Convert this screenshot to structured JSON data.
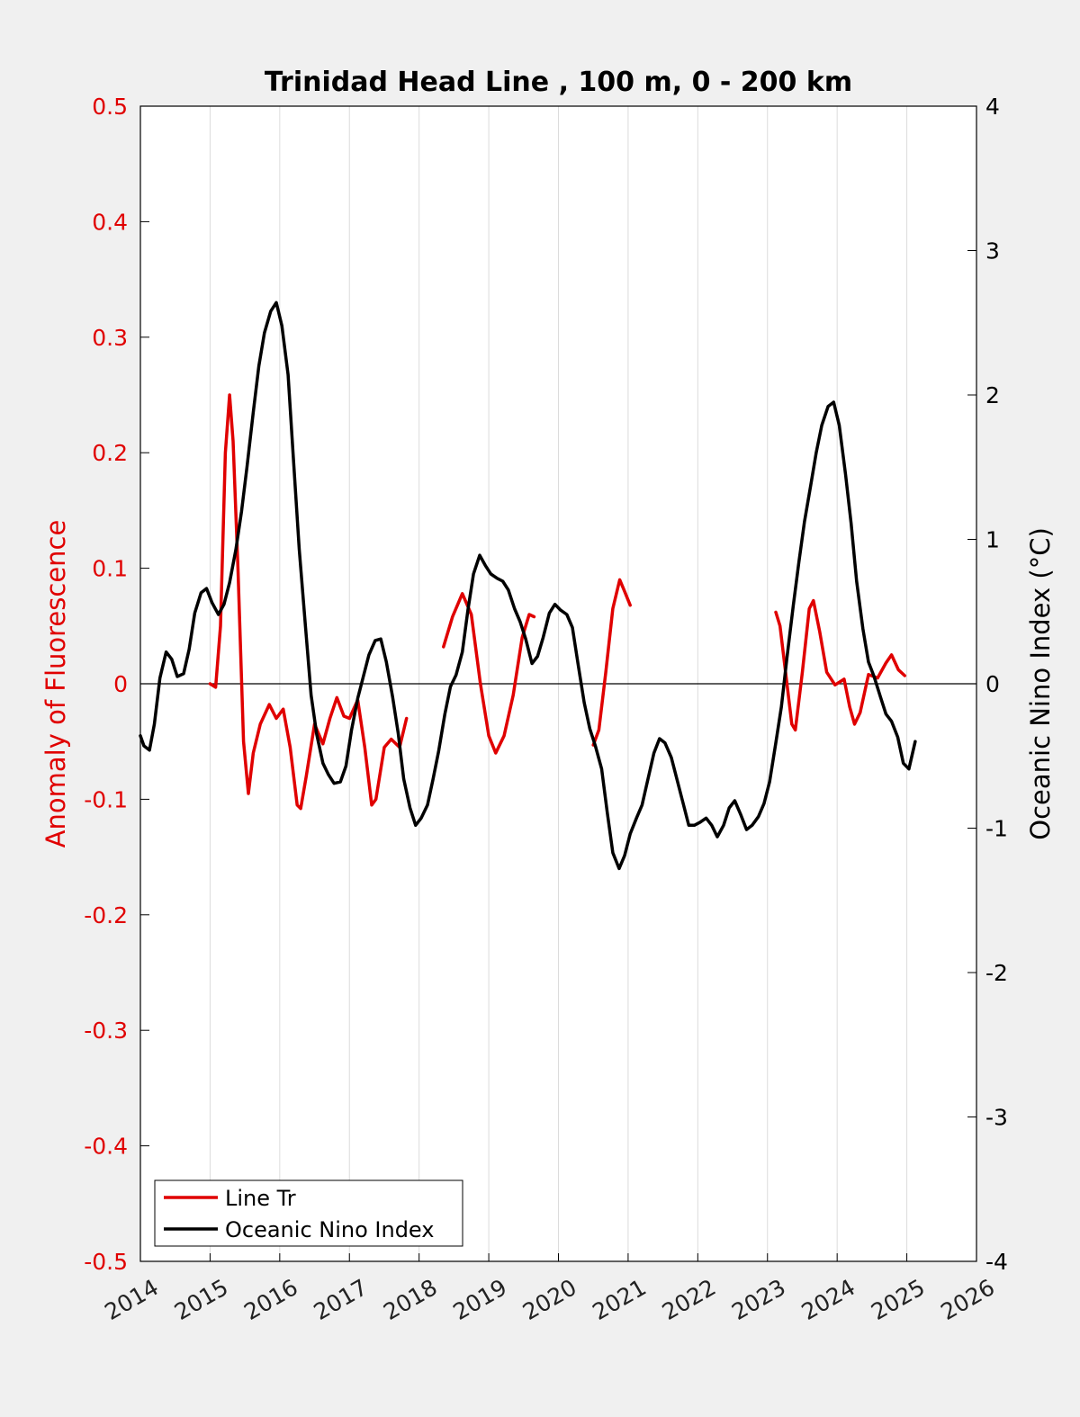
{
  "chart_data": {
    "type": "line",
    "title": "Trinidad Head Line , 100 m, 0 - 200 km",
    "xlabel": "",
    "ylabel_left": "Anomaly of Fluorescence",
    "ylabel_right": "Oceanic Nino Index (°C)",
    "xlim": [
      2014,
      2026
    ],
    "ylim_left": [
      -0.5,
      0.5
    ],
    "ylim_right": [
      -4,
      4
    ],
    "x_ticks": [
      "2014",
      "2015",
      "2016",
      "2017",
      "2018",
      "2019",
      "2020",
      "2021",
      "2022",
      "2023",
      "2024",
      "2025",
      "2026"
    ],
    "y_left_ticks": [
      "0.5",
      "0.4",
      "0.3",
      "0.2",
      "0.1",
      "0",
      "-0.1",
      "-0.2",
      "-0.3",
      "-0.4",
      "-0.5"
    ],
    "y_right_ticks": [
      "4",
      "3",
      "2",
      "1",
      "0",
      "-1",
      "-2",
      "-3",
      "-4"
    ],
    "grid": "vertical",
    "zero_line": true,
    "legend_position": "bottom-left",
    "series": [
      {
        "name": "Line Tr",
        "axis": "left",
        "color": "#e00000",
        "segments": [
          [
            [
              2015.0,
              0.0
            ],
            [
              2015.08,
              -0.003
            ],
            [
              2015.15,
              0.05
            ],
            [
              2015.22,
              0.2
            ],
            [
              2015.28,
              0.25
            ],
            [
              2015.33,
              0.21
            ],
            [
              2015.4,
              0.1
            ],
            [
              2015.48,
              -0.05
            ],
            [
              2015.55,
              -0.095
            ],
            [
              2015.62,
              -0.06
            ],
            [
              2015.72,
              -0.035
            ],
            [
              2015.85,
              -0.018
            ],
            [
              2015.95,
              -0.03
            ],
            [
              2016.05,
              -0.022
            ],
            [
              2016.15,
              -0.055
            ],
            [
              2016.25,
              -0.105
            ],
            [
              2016.3,
              -0.108
            ],
            [
              2016.38,
              -0.08
            ],
            [
              2016.5,
              -0.035
            ],
            [
              2016.62,
              -0.052
            ],
            [
              2016.72,
              -0.03
            ],
            [
              2016.82,
              -0.012
            ],
            [
              2016.92,
              -0.028
            ],
            [
              2017.0,
              -0.03
            ],
            [
              2017.12,
              -0.014
            ],
            [
              2017.22,
              -0.055
            ],
            [
              2017.32,
              -0.105
            ],
            [
              2017.38,
              -0.1
            ],
            [
              2017.5,
              -0.055
            ],
            [
              2017.6,
              -0.048
            ],
            [
              2017.72,
              -0.055
            ],
            [
              2017.82,
              -0.03
            ]
          ],
          [
            [
              2018.35,
              0.032
            ],
            [
              2018.48,
              0.058
            ],
            [
              2018.62,
              0.078
            ],
            [
              2018.75,
              0.06
            ],
            [
              2018.88,
              0.0
            ],
            [
              2019.0,
              -0.045
            ],
            [
              2019.1,
              -0.06
            ],
            [
              2019.22,
              -0.045
            ],
            [
              2019.35,
              -0.01
            ],
            [
              2019.48,
              0.04
            ],
            [
              2019.58,
              0.06
            ],
            [
              2019.65,
              0.058
            ]
          ],
          [
            [
              2020.5,
              -0.053
            ],
            [
              2020.58,
              -0.04
            ],
            [
              2020.68,
              0.01
            ],
            [
              2020.78,
              0.065
            ],
            [
              2020.88,
              0.09
            ],
            [
              2020.95,
              0.08
            ],
            [
              2021.03,
              0.068
            ]
          ],
          [
            [
              2023.12,
              0.062
            ],
            [
              2023.18,
              0.05
            ],
            [
              2023.28,
              0.0
            ],
            [
              2023.35,
              -0.035
            ],
            [
              2023.4,
              -0.04
            ],
            [
              2023.5,
              0.01
            ],
            [
              2023.6,
              0.065
            ],
            [
              2023.66,
              0.072
            ],
            [
              2023.75,
              0.045
            ],
            [
              2023.85,
              0.01
            ],
            [
              2023.97,
              -0.001
            ],
            [
              2024.1,
              0.004
            ],
            [
              2024.18,
              -0.02
            ],
            [
              2024.25,
              -0.035
            ],
            [
              2024.33,
              -0.025
            ],
            [
              2024.45,
              0.008
            ],
            [
              2024.58,
              0.005
            ],
            [
              2024.7,
              0.018
            ],
            [
              2024.78,
              0.025
            ],
            [
              2024.88,
              0.012
            ],
            [
              2024.97,
              0.007
            ]
          ]
        ]
      },
      {
        "name": "Oceanic Nino Index",
        "axis": "right",
        "color": "#000000",
        "segments": [
          [
            [
              2014.0,
              -0.36
            ],
            [
              2014.05,
              -0.43
            ],
            [
              2014.13,
              -0.46
            ],
            [
              2014.2,
              -0.28
            ],
            [
              2014.28,
              0.04
            ],
            [
              2014.37,
              0.22
            ],
            [
              2014.45,
              0.17
            ],
            [
              2014.53,
              0.05
            ],
            [
              2014.62,
              0.07
            ],
            [
              2014.7,
              0.24
            ],
            [
              2014.78,
              0.49
            ],
            [
              2014.87,
              0.63
            ],
            [
              2014.95,
              0.66
            ],
            [
              2015.03,
              0.56
            ],
            [
              2015.12,
              0.48
            ],
            [
              2015.2,
              0.55
            ],
            [
              2015.28,
              0.7
            ],
            [
              2015.37,
              0.93
            ],
            [
              2015.45,
              1.19
            ],
            [
              2015.53,
              1.5
            ],
            [
              2015.62,
              1.88
            ],
            [
              2015.7,
              2.2
            ],
            [
              2015.78,
              2.43
            ],
            [
              2015.87,
              2.58
            ],
            [
              2015.95,
              2.64
            ],
            [
              2016.03,
              2.48
            ],
            [
              2016.12,
              2.14
            ],
            [
              2016.2,
              1.53
            ],
            [
              2016.28,
              0.93
            ],
            [
              2016.37,
              0.39
            ],
            [
              2016.45,
              -0.08
            ],
            [
              2016.53,
              -0.35
            ],
            [
              2016.62,
              -0.55
            ],
            [
              2016.7,
              -0.63
            ],
            [
              2016.78,
              -0.69
            ],
            [
              2016.87,
              -0.68
            ],
            [
              2016.95,
              -0.57
            ],
            [
              2017.03,
              -0.32
            ],
            [
              2017.12,
              -0.1
            ],
            [
              2017.2,
              0.05
            ],
            [
              2017.28,
              0.2
            ],
            [
              2017.37,
              0.3
            ],
            [
              2017.45,
              0.31
            ],
            [
              2017.53,
              0.15
            ],
            [
              2017.62,
              -0.09
            ],
            [
              2017.7,
              -0.34
            ],
            [
              2017.78,
              -0.66
            ],
            [
              2017.87,
              -0.86
            ],
            [
              2017.95,
              -0.98
            ],
            [
              2018.03,
              -0.93
            ],
            [
              2018.12,
              -0.84
            ],
            [
              2018.2,
              -0.66
            ],
            [
              2018.28,
              -0.47
            ],
            [
              2018.37,
              -0.21
            ],
            [
              2018.45,
              -0.02
            ],
            [
              2018.53,
              0.06
            ],
            [
              2018.62,
              0.22
            ],
            [
              2018.7,
              0.51
            ],
            [
              2018.78,
              0.76
            ],
            [
              2018.87,
              0.89
            ],
            [
              2018.95,
              0.82
            ],
            [
              2019.03,
              0.76
            ],
            [
              2019.12,
              0.73
            ],
            [
              2019.2,
              0.71
            ],
            [
              2019.28,
              0.65
            ],
            [
              2019.37,
              0.52
            ],
            [
              2019.45,
              0.43
            ],
            [
              2019.53,
              0.31
            ],
            [
              2019.62,
              0.14
            ],
            [
              2019.7,
              0.19
            ],
            [
              2019.78,
              0.32
            ],
            [
              2019.87,
              0.49
            ],
            [
              2019.95,
              0.55
            ],
            [
              2020.03,
              0.51
            ],
            [
              2020.12,
              0.48
            ],
            [
              2020.2,
              0.39
            ],
            [
              2020.28,
              0.14
            ],
            [
              2020.37,
              -0.13
            ],
            [
              2020.45,
              -0.31
            ],
            [
              2020.53,
              -0.43
            ],
            [
              2020.62,
              -0.59
            ],
            [
              2020.7,
              -0.89
            ],
            [
              2020.78,
              -1.17
            ],
            [
              2020.87,
              -1.28
            ],
            [
              2020.95,
              -1.19
            ],
            [
              2021.03,
              -1.04
            ],
            [
              2021.12,
              -0.93
            ],
            [
              2021.2,
              -0.84
            ],
            [
              2021.28,
              -0.67
            ],
            [
              2021.37,
              -0.48
            ],
            [
              2021.45,
              -0.38
            ],
            [
              2021.53,
              -0.41
            ],
            [
              2021.62,
              -0.51
            ],
            [
              2021.7,
              -0.66
            ],
            [
              2021.78,
              -0.81
            ],
            [
              2021.87,
              -0.98
            ],
            [
              2021.95,
              -0.98
            ],
            [
              2022.03,
              -0.96
            ],
            [
              2022.12,
              -0.93
            ],
            [
              2022.2,
              -0.98
            ],
            [
              2022.28,
              -1.06
            ],
            [
              2022.37,
              -0.98
            ],
            [
              2022.45,
              -0.86
            ],
            [
              2022.53,
              -0.81
            ],
            [
              2022.62,
              -0.91
            ],
            [
              2022.7,
              -1.01
            ],
            [
              2022.78,
              -0.98
            ],
            [
              2022.87,
              -0.92
            ],
            [
              2022.95,
              -0.83
            ],
            [
              2023.03,
              -0.68
            ],
            [
              2023.12,
              -0.41
            ],
            [
              2023.2,
              -0.16
            ],
            [
              2023.28,
              0.18
            ],
            [
              2023.37,
              0.54
            ],
            [
              2023.45,
              0.84
            ],
            [
              2023.53,
              1.12
            ],
            [
              2023.62,
              1.37
            ],
            [
              2023.7,
              1.6
            ],
            [
              2023.78,
              1.79
            ],
            [
              2023.87,
              1.92
            ],
            [
              2023.95,
              1.95
            ],
            [
              2024.03,
              1.79
            ],
            [
              2024.12,
              1.45
            ],
            [
              2024.2,
              1.11
            ],
            [
              2024.28,
              0.71
            ],
            [
              2024.37,
              0.38
            ],
            [
              2024.45,
              0.15
            ],
            [
              2024.53,
              0.05
            ],
            [
              2024.62,
              -0.09
            ],
            [
              2024.7,
              -0.21
            ],
            [
              2024.78,
              -0.26
            ],
            [
              2024.87,
              -0.37
            ],
            [
              2024.95,
              -0.55
            ],
            [
              2025.03,
              -0.59
            ],
            [
              2025.12,
              -0.4
            ]
          ]
        ]
      }
    ]
  },
  "legend": {
    "items": [
      {
        "label": "Line Tr",
        "color": "#e00000"
      },
      {
        "label": "Oceanic Nino Index",
        "color": "#000000"
      }
    ]
  }
}
